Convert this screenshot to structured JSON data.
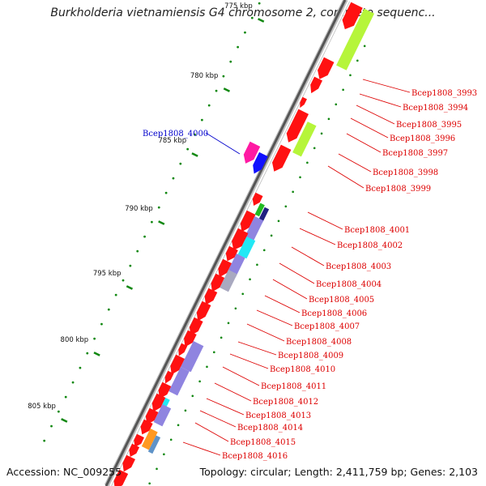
{
  "title": "Burkholderia vietnamiensis G4 chromosome 2, complete sequenc...",
  "accession": "Accession: NC_009255",
  "topology": "Topology: circular; Length: 2,411,759 bp; Genes: 2,103",
  "colors": {
    "gene_red": "#ff1111",
    "gene_green": "#b6f53a",
    "gene_purple": "#8f84e0",
    "gene_navy": "#202080",
    "gene_cyan": "#22e8f5",
    "gene_magenta": "#ff1aa3",
    "gene_blue": "#1111ff",
    "gene_orange": "#ff9922",
    "gene_steel": "#5f93c8",
    "gene_grey": "#a9a9c0",
    "gene_green2": "#22bb22",
    "label_red": "#dd0000",
    "label_blue": "#0000cc",
    "tick_green": "#118811",
    "backbone": "#444444"
  },
  "ticks": [
    {
      "label": "775 kbp"
    },
    {
      "label": "780 kbp"
    },
    {
      "label": "785 kbp"
    },
    {
      "label": "790 kbp"
    },
    {
      "label": "795 kbp"
    },
    {
      "label": "800 kbp"
    },
    {
      "label": "805 kbp"
    }
  ],
  "genes": [
    {
      "label": "Bcep1808_3993",
      "color": "red"
    },
    {
      "label": "Bcep1808_3994",
      "color": "red"
    },
    {
      "label": "Bcep1808_3995",
      "color": "red"
    },
    {
      "label": "Bcep1808_3996",
      "color": "red"
    },
    {
      "label": "Bcep1808_3997",
      "color": "red"
    },
    {
      "label": "Bcep1808_3998",
      "color": "red"
    },
    {
      "label": "Bcep1808_3999",
      "color": "red"
    },
    {
      "label": "Bcep1808_4000",
      "color": "blue"
    },
    {
      "label": "Bcep1808_4001",
      "color": "red"
    },
    {
      "label": "Bcep1808_4002",
      "color": "red"
    },
    {
      "label": "Bcep1808_4003",
      "color": "red"
    },
    {
      "label": "Bcep1808_4004",
      "color": "red"
    },
    {
      "label": "Bcep1808_4005",
      "color": "red"
    },
    {
      "label": "Bcep1808_4006",
      "color": "red"
    },
    {
      "label": "Bcep1808_4007",
      "color": "red"
    },
    {
      "label": "Bcep1808_4008",
      "color": "red"
    },
    {
      "label": "Bcep1808_4009",
      "color": "red"
    },
    {
      "label": "Bcep1808_4010",
      "color": "red"
    },
    {
      "label": "Bcep1808_4011",
      "color": "red"
    },
    {
      "label": "Bcep1808_4012",
      "color": "red"
    },
    {
      "label": "Bcep1808_4013",
      "color": "red"
    },
    {
      "label": "Bcep1808_4014",
      "color": "red"
    },
    {
      "label": "Bcep1808_4015",
      "color": "red"
    },
    {
      "label": "Bcep1808_4016",
      "color": "red"
    }
  ]
}
